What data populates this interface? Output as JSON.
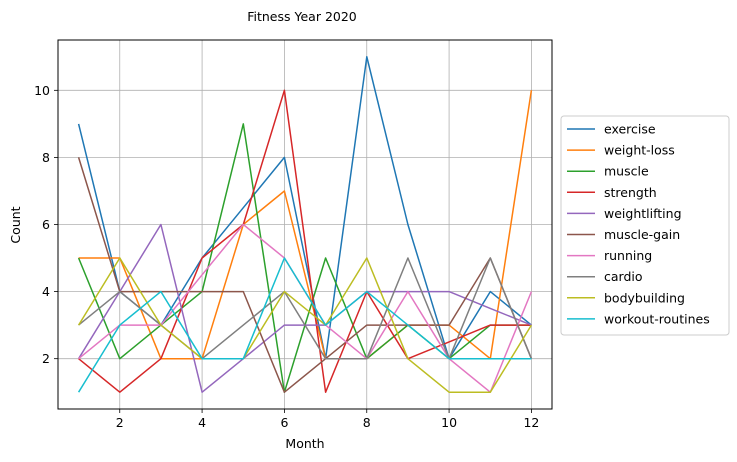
{
  "chart_data": {
    "type": "line",
    "title": "Fitness Year 2020",
    "xlabel": "Month",
    "ylabel": "Count",
    "xlim": [
      0.5,
      12.5
    ],
    "ylim": [
      0.5,
      11.5
    ],
    "xticks": [
      2,
      4,
      6,
      8,
      10,
      12
    ],
    "yticks": [
      2,
      4,
      6,
      8,
      10
    ],
    "grid": true,
    "legend_position": "right",
    "x": [
      1,
      2,
      3,
      4,
      5,
      6,
      7,
      8,
      9,
      10,
      11,
      12
    ],
    "series": [
      {
        "name": "exercise",
        "color": "#1f77b4",
        "values": [
          9,
          4,
          3,
          5,
          6.5,
          8,
          2,
          11,
          6,
          2,
          4,
          3
        ]
      },
      {
        "name": "weight-loss",
        "color": "#ff7f0e",
        "values": [
          5,
          5,
          2,
          2,
          6,
          7,
          2,
          2,
          3,
          3,
          2,
          10
        ]
      },
      {
        "name": "muscle",
        "color": "#2ca02c",
        "values": [
          5,
          2,
          3,
          4,
          9,
          1,
          5,
          2,
          3,
          2,
          3,
          3
        ]
      },
      {
        "name": "strength",
        "color": "#d62728",
        "values": [
          2,
          1,
          2,
          5,
          6,
          10,
          1,
          4,
          2,
          2.5,
          3,
          3
        ]
      },
      {
        "name": "weightlifting",
        "color": "#9467bd",
        "values": [
          2,
          4,
          6,
          1,
          2,
          3,
          3,
          4,
          4,
          4,
          3.5,
          3
        ]
      },
      {
        "name": "muscle-gain",
        "color": "#8c564b",
        "values": [
          8,
          4,
          4,
          4,
          4,
          1,
          2,
          3,
          3,
          3,
          5,
          2
        ]
      },
      {
        "name": "running",
        "color": "#e377c2",
        "values": [
          2,
          3,
          3,
          4.5,
          6,
          5,
          3,
          2,
          4,
          2,
          1,
          4
        ]
      },
      {
        "name": "cardio",
        "color": "#7f7f7f",
        "values": [
          3,
          4,
          3,
          2,
          3,
          4,
          2,
          2,
          5,
          2,
          5,
          2
        ]
      },
      {
        "name": "bodybuilding",
        "color": "#bcbd22",
        "values": [
          3,
          5,
          3,
          2,
          2,
          4,
          3,
          5,
          2,
          1,
          1,
          3
        ]
      },
      {
        "name": "workout-routines",
        "color": "#17becf",
        "values": [
          1,
          3,
          4,
          2,
          2,
          5,
          3,
          4,
          3,
          2,
          2,
          2
        ]
      }
    ]
  }
}
